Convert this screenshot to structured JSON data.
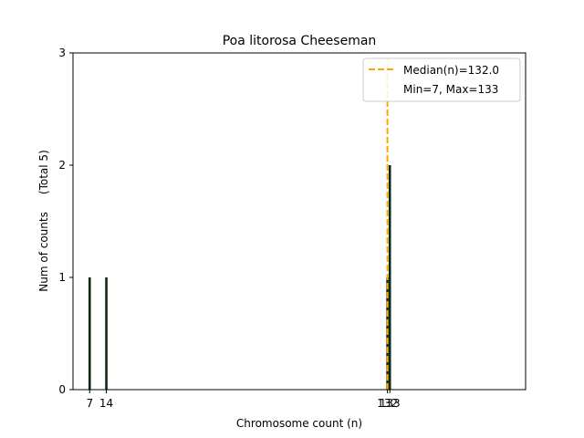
{
  "chart_data": {
    "type": "bar",
    "title": "Poa litorosa Cheeseman",
    "xlabel": "Chromosome count (n)",
    "ylabel": "Num of counts     (Total 5)",
    "xlim": [
      0,
      190
    ],
    "ylim": [
      0,
      3
    ],
    "yticks": [
      0,
      1,
      2,
      3
    ],
    "xticks": [
      7,
      14,
      132,
      133
    ],
    "series": [
      {
        "x": [
          7,
          14,
          132,
          133
        ],
        "values": [
          1,
          1,
          1,
          2
        ],
        "color": "#0b2a14"
      }
    ],
    "median": {
      "value": 132.0,
      "color": "#ffa500",
      "style": "dashed"
    },
    "legend": {
      "placement": "top-right",
      "entries": [
        "Median(n)=132.0",
        "Min=7, Max=133"
      ]
    },
    "grid": false
  }
}
